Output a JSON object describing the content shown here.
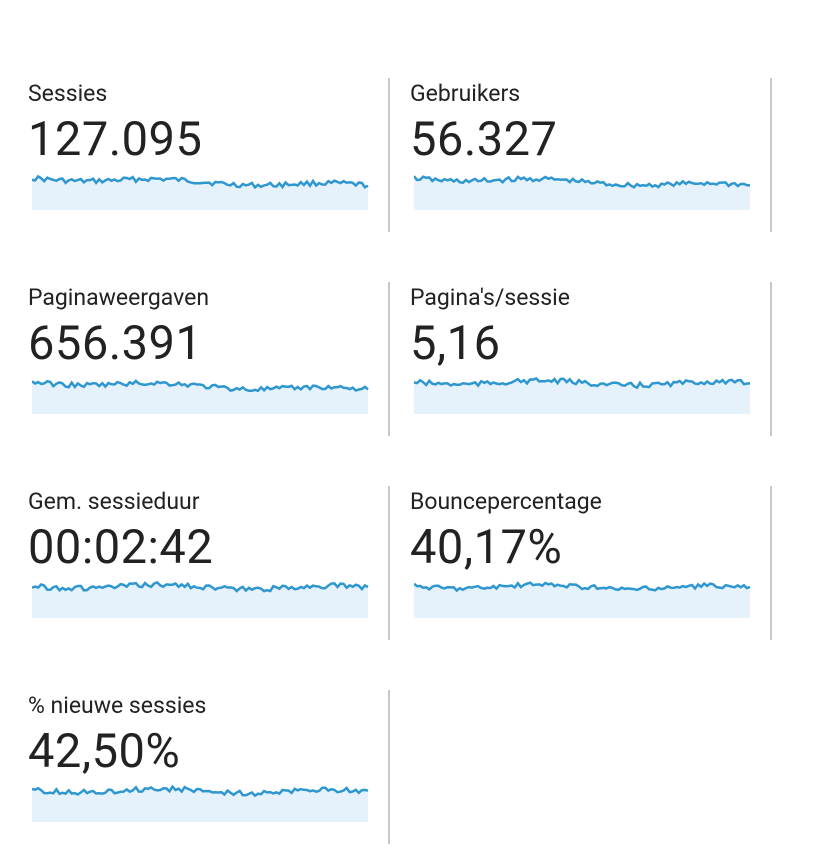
{
  "metrics": [
    {
      "label": "Sessies",
      "value": "127.095"
    },
    {
      "label": "Gebruikers",
      "value": "56.327"
    },
    {
      "label": "Paginaweergaven",
      "value": "656.391"
    },
    {
      "label": "Pagina's/sessie",
      "value": "5,16"
    },
    {
      "label": "Gem. sessieduur",
      "value": "00:02:42"
    },
    {
      "label": "Bouncepercentage",
      "value": "40,17%"
    },
    {
      "label": "% nieuwe sessies",
      "value": "42,50%"
    }
  ]
}
